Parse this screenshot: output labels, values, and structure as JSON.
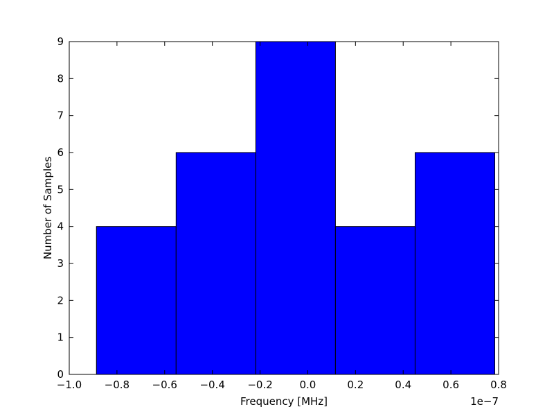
{
  "chart_data": {
    "type": "histogram",
    "x_label": "Frequency [MHz]",
    "y_label": "Number of Samples",
    "x_offset_label": "1e−7",
    "bins": [
      -0.886,
      -0.552,
      -0.218,
      0.116,
      0.45,
      0.784
    ],
    "counts": [
      4,
      6,
      9,
      4,
      6
    ],
    "color": "#0000ff",
    "edge_color": "#000000",
    "xlim": [
      -1.0,
      0.8
    ],
    "xticks": [
      {
        "value": -1.0,
        "label": "−1.0"
      },
      {
        "value": -0.8,
        "label": "−0.8"
      },
      {
        "value": -0.6,
        "label": "−0.6"
      },
      {
        "value": -0.4,
        "label": "−0.4"
      },
      {
        "value": -0.2,
        "label": "−0.2"
      },
      {
        "value": 0,
        "label": "0.0"
      },
      0.2,
      0.4,
      0.6,
      0.8
    ],
    "ylim": [
      0,
      9
    ],
    "yticks": [
      0,
      1,
      2,
      3,
      4,
      5,
      6,
      7,
      8,
      9
    ],
    "grid": false
  }
}
